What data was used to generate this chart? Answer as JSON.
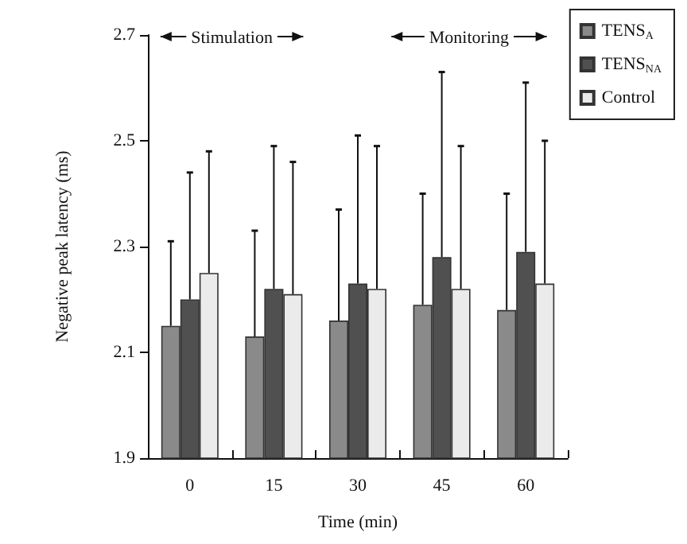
{
  "chart_data": {
    "type": "bar",
    "xlabel": "Time (min)",
    "ylabel": "Negative peak latency (ms)",
    "categories": [
      "0",
      "15",
      "30",
      "45",
      "60"
    ],
    "series": [
      {
        "name": "TENS$_{A}$",
        "color": "#8a8a8a",
        "values": [
          2.15,
          2.13,
          2.16,
          2.19,
          2.18
        ],
        "errors": [
          [
            2.15,
            2.31
          ],
          [
            2.13,
            2.33
          ],
          [
            2.16,
            2.37
          ],
          [
            2.19,
            2.4
          ],
          [
            2.18,
            2.4
          ]
        ]
      },
      {
        "name": "TENS$_{NA}$",
        "color": "#505050",
        "values": [
          2.2,
          2.22,
          2.23,
          2.28,
          2.29
        ],
        "errors": [
          [
            2.2,
            2.44
          ],
          [
            2.22,
            2.49
          ],
          [
            2.23,
            2.51
          ],
          [
            2.28,
            2.63
          ],
          [
            2.29,
            2.61
          ]
        ]
      },
      {
        "name": "Control",
        "color": "#ebebeb",
        "values": [
          2.25,
          2.21,
          2.22,
          2.22,
          2.23
        ],
        "errors": [
          [
            2.25,
            2.48
          ],
          [
            2.21,
            2.46
          ],
          [
            2.22,
            2.49
          ],
          [
            2.22,
            2.49
          ],
          [
            2.23,
            2.5
          ]
        ]
      }
    ],
    "annotations": [
      "Stimulation",
      "Monitoring"
    ],
    "ylim": [
      1.9,
      2.7
    ],
    "yticks": [
      1.9,
      2.1,
      2.3,
      2.5,
      2.7
    ],
    "grid": false,
    "legend": "top right"
  }
}
